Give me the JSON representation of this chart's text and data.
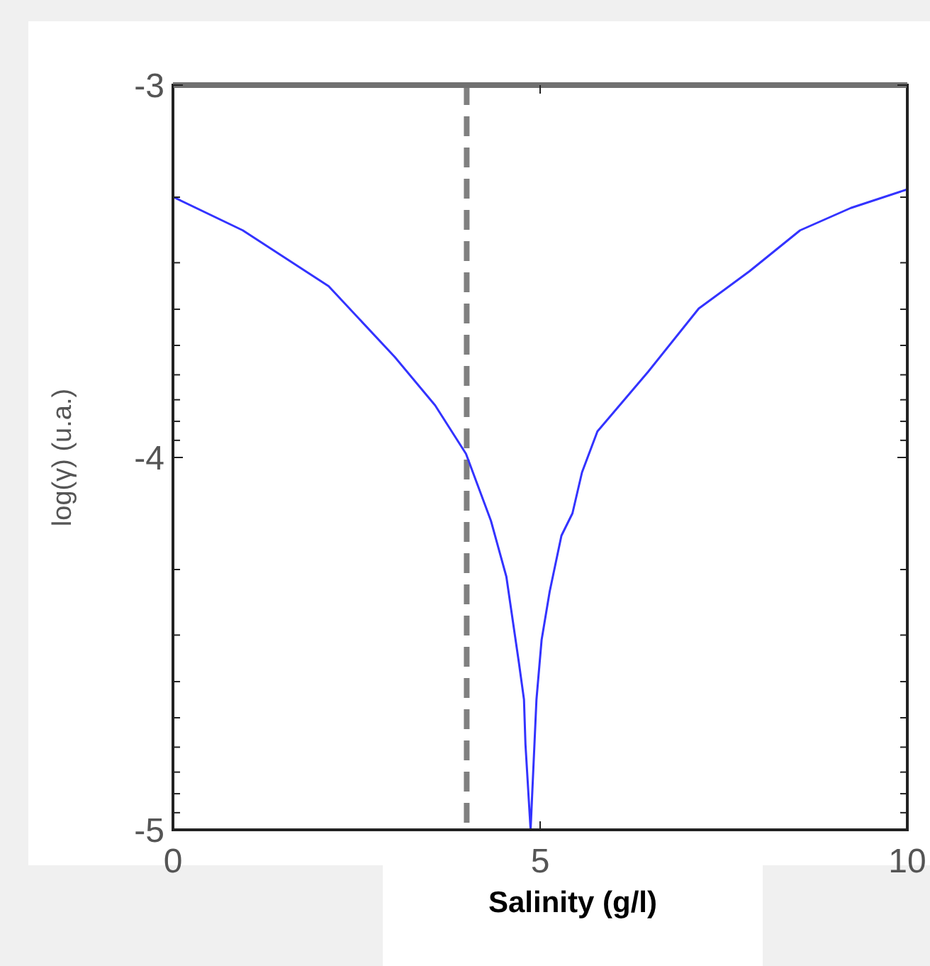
{
  "chart_data": {
    "type": "line",
    "xlabel": "Salinity (g/l)",
    "ylabel": "log(γ) (u.a.)",
    "x": [
      0,
      0.95,
      2.12,
      3.02,
      3.57,
      3.99,
      4.33,
      4.54,
      4.71,
      4.78,
      4.8,
      4.87,
      4.95,
      5.02,
      5.13,
      5.29,
      5.44,
      5.57,
      5.78,
      6.47,
      7.16,
      7.85,
      8.54,
      9.23,
      10
    ],
    "series": [
      {
        "color": "#3333ff",
        "values": [
          -3.3,
          -3.39,
          -3.54,
          -3.73,
          -3.86,
          -3.99,
          -4.17,
          -4.32,
          -4.55,
          -4.65,
          -4.77,
          -5,
          -4.65,
          -4.49,
          -4.36,
          -4.21,
          -4.15,
          -4.04,
          -3.93,
          -3.77,
          -3.6,
          -3.5,
          -3.39,
          -3.33,
          -3.28
        ]
      }
    ],
    "xlim": [
      0,
      10
    ],
    "xticks": [
      0,
      5,
      10
    ],
    "ylim": [
      -5,
      -3
    ],
    "yticks": [
      -3,
      {
        "value": -3.301,
        "label": null
      },
      {
        "value": -3.477,
        "label": null
      },
      {
        "value": -3.602,
        "label": null
      },
      {
        "value": -3.699,
        "label": null
      },
      {
        "value": -3.778,
        "label": null
      },
      {
        "value": -3.845,
        "label": null
      },
      {
        "value": -3.903,
        "label": null
      },
      {
        "value": -3.954,
        "label": null
      },
      -4,
      {
        "value": -4.301,
        "label": null
      },
      {
        "value": -4.477,
        "label": null
      },
      {
        "value": -4.602,
        "label": null
      },
      {
        "value": -4.699,
        "label": null
      },
      {
        "value": -4.778,
        "label": null
      },
      {
        "value": -4.845,
        "label": null
      },
      {
        "value": -4.903,
        "label": null
      },
      {
        "value": -4.954,
        "label": null
      },
      -5
    ],
    "ref_lines": [
      {
        "axis": "x",
        "value": 4,
        "color": "#808080",
        "line_style": "dashed"
      }
    ],
    "grid": false,
    "marker": "none",
    "line_style": "solid"
  }
}
